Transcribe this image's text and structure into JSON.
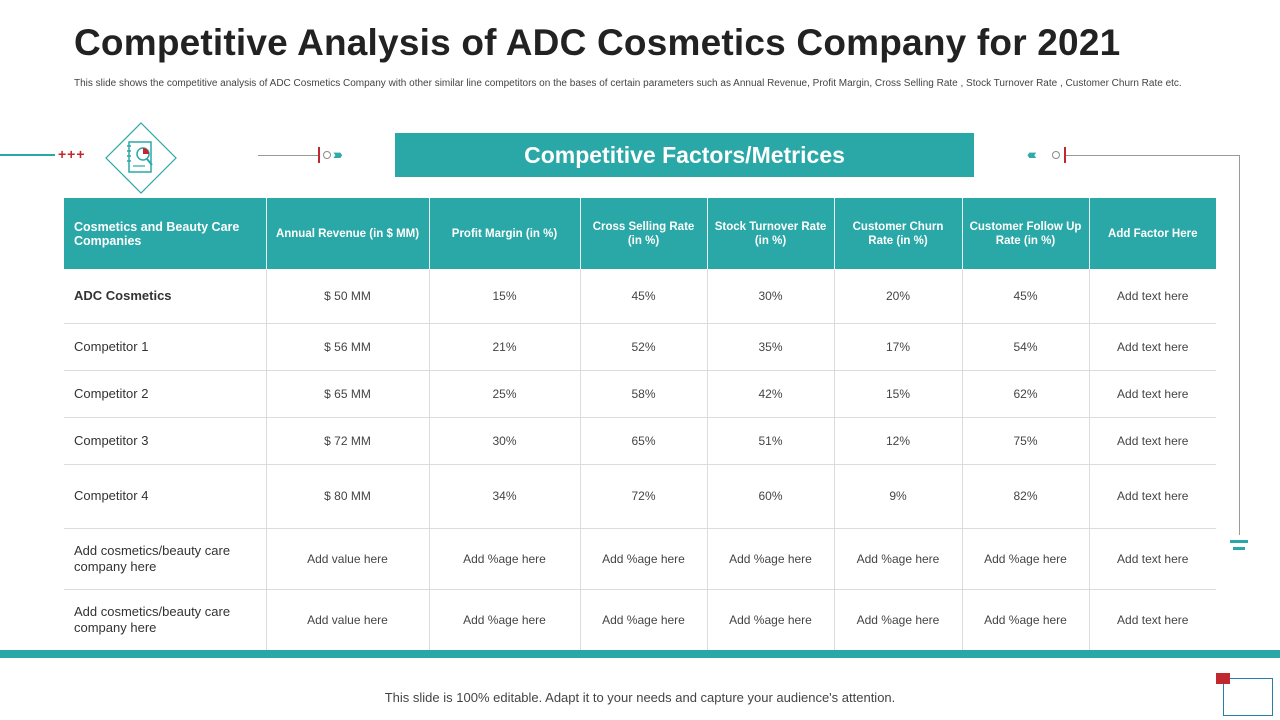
{
  "title": "Competitive Analysis of ADC Cosmetics Company for 2021",
  "subtitle": "This slide shows the competitive analysis of ADC Cosmetics Company with other similar line competitors on the bases of certain parameters such as Annual Revenue, Profit Margin, Cross Selling Rate , Stock Turnover Rate , Customer Churn Rate etc.",
  "banner": "Competitive Factors/Metrices",
  "table": {
    "headers": [
      "Cosmetics and Beauty Care Companies",
      "Annual Revenue (in $ MM)",
      "Profit Margin (in %)",
      "Cross Selling Rate (in %)",
      "Stock Turnover Rate (in %)",
      "Customer Churn Rate (in %)",
      "Customer Follow Up Rate (in %)",
      "Add Factor Here"
    ],
    "rows": [
      [
        "ADC Cosmetics",
        "$ 50 MM",
        "15%",
        "45%",
        "30%",
        "20%",
        "45%",
        "Add text here"
      ],
      [
        "Competitor 1",
        "$ 56 MM",
        "21%",
        "52%",
        "35%",
        "17%",
        "54%",
        "Add text here"
      ],
      [
        "Competitor 2",
        "$ 65 MM",
        "25%",
        "58%",
        "42%",
        "15%",
        "62%",
        "Add text here"
      ],
      [
        "Competitor 3",
        "$ 72 MM",
        "30%",
        "65%",
        "51%",
        "12%",
        "75%",
        "Add text here"
      ],
      [
        "Competitor 4",
        "$ 80 MM",
        "34%",
        "72%",
        "60%",
        "9%",
        "82%",
        "Add text here"
      ],
      [
        "Add cosmetics/beauty care company here",
        "Add value here",
        "Add %age here",
        "Add %age here",
        "Add %age here",
        "Add %age here",
        "Add %age here",
        "Add text here"
      ],
      [
        "Add cosmetics/beauty care company here",
        "Add value here",
        "Add %age here",
        "Add %age here",
        "Add %age here",
        "Add %age here",
        "Add %age here",
        "Add text here"
      ]
    ]
  },
  "footer": "This slide is 100% editable. Adapt it to your needs and capture your audience's attention.",
  "colors": {
    "accent": "#2aa8a7",
    "marker": "#c0282d",
    "text": "#333333"
  },
  "icons": [
    "analysis-document-icon",
    "plus-icon",
    "chevron-right-icon",
    "chevron-left-icon",
    "menu-lines-icon"
  ]
}
